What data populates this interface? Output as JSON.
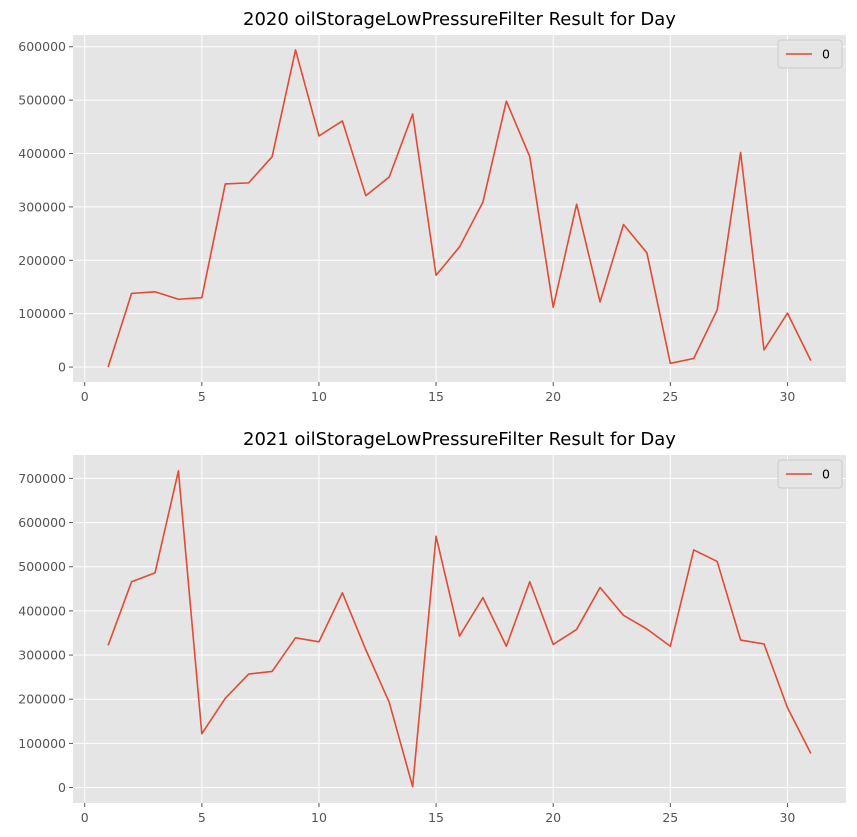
{
  "chart_data": [
    {
      "type": "line",
      "title": "2020 oilStorageLowPressureFilter Result for Day",
      "xlabel": "",
      "ylabel": "",
      "xlim": [
        -0.5,
        32.5
      ],
      "ylim": [
        -28000,
        622000
      ],
      "xticks": [
        0,
        5,
        10,
        15,
        20,
        25,
        30
      ],
      "yticks": [
        0,
        100000,
        200000,
        300000,
        400000,
        500000,
        600000
      ],
      "grid": true,
      "legend": "top-right",
      "series": [
        {
          "name": "0",
          "color": "#E24A33",
          "x": [
            1,
            2,
            3,
            4,
            5,
            6,
            7,
            8,
            9,
            10,
            11,
            12,
            13,
            14,
            15,
            16,
            17,
            18,
            19,
            20,
            21,
            22,
            23,
            24,
            25,
            26,
            27,
            28,
            29,
            30,
            31
          ],
          "values": [
            0,
            138000,
            141000,
            127000,
            130000,
            343000,
            345000,
            394000,
            594000,
            433000,
            461000,
            321000,
            356000,
            474000,
            172000,
            225000,
            309000,
            498000,
            394000,
            112000,
            305000,
            122000,
            267000,
            214000,
            7000,
            16000,
            107000,
            402000,
            32000,
            101000,
            12000
          ]
        }
      ]
    },
    {
      "type": "line",
      "title": "2021 oilStorageLowPressureFilter Result for Day",
      "xlabel": "",
      "ylabel": "",
      "xlim": [
        -0.5,
        32.5
      ],
      "ylim": [
        -35000,
        753000
      ],
      "xticks": [
        0,
        5,
        10,
        15,
        20,
        25,
        30
      ],
      "yticks": [
        0,
        100000,
        200000,
        300000,
        400000,
        500000,
        600000,
        700000
      ],
      "grid": true,
      "legend": "top-right",
      "series": [
        {
          "name": "0",
          "color": "#E24A33",
          "x": [
            1,
            2,
            3,
            4,
            5,
            6,
            7,
            8,
            9,
            10,
            11,
            12,
            13,
            14,
            15,
            16,
            17,
            18,
            19,
            20,
            21,
            22,
            23,
            24,
            25,
            26,
            27,
            28,
            29,
            30,
            31
          ],
          "values": [
            322000,
            466000,
            486000,
            717000,
            122000,
            202000,
            257000,
            263000,
            339000,
            330000,
            441000,
            312000,
            193000,
            2000,
            569000,
            343000,
            430000,
            320000,
            466000,
            324000,
            358000,
            453000,
            390000,
            359000,
            320000,
            538000,
            512000,
            334000,
            325000,
            181000,
            77000
          ]
        }
      ]
    }
  ]
}
